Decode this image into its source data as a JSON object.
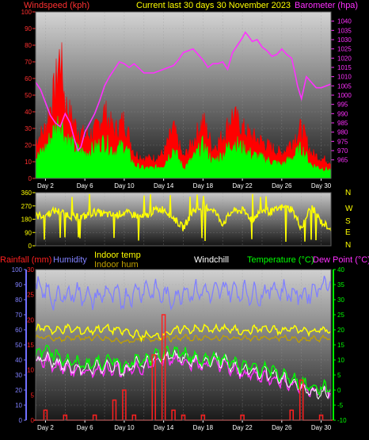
{
  "header": {
    "left": "Windspeed (kph)",
    "center": "Current last 30 days 30 November 2023",
    "right": "Barometer (hpa)"
  },
  "colors": {
    "wind_title": "#ff3030",
    "center_title": "#ffff00",
    "baro": "#ff30ff",
    "gust": "#ff0000",
    "avg_wind": "#00ff00",
    "wind_dir": "#ffff00",
    "rain": "#ff2020",
    "humidity": "#8080ff",
    "indoor_temp": "#ffff00",
    "indoor_hum": "#c0a000",
    "windchill": "#ffffff",
    "temperature": "#00ff00",
    "dew": "#ff30ff",
    "frame": "#7070ff"
  },
  "x_ticks": [
    "Day 2",
    "Day 6",
    "Day 10",
    "Day 14",
    "Day 18",
    "Day 22",
    "Day 26",
    "Day 30"
  ],
  "legend": {
    "rainfall": "Rainfall (mm)",
    "humidity": "Humidity",
    "indoor_temp": "Indoor temp",
    "indoor_hum": "Indoor hum",
    "windchill": "Windchill",
    "temperature": "Temperature (°C)",
    "dew_point": "Dew Point (°C)"
  },
  "chart_data": [
    {
      "type": "line",
      "panel": "wind-barometer",
      "x_unit": "day",
      "xlim": [
        1,
        31
      ],
      "left_axis": {
        "label": "Windspeed (kph)",
        "ylim": [
          0,
          100
        ],
        "ticks": [
          "0",
          "10",
          "20",
          "30",
          "40",
          "50",
          "60",
          "70",
          "80",
          "90",
          "100"
        ]
      },
      "right_axis": {
        "label": "Barometer (hpa)",
        "ylim": [
          955,
          1045
        ],
        "ticks": [
          "965",
          "970",
          "975",
          "980",
          "985",
          "990",
          "995",
          "1000",
          "1005",
          "1010",
          "1015",
          "1020",
          "1025",
          "1030",
          "1035",
          "1040"
        ]
      },
      "series": [
        {
          "name": "Barometer (hpa)",
          "axis": "right",
          "x": [
            1,
            1.5,
            2,
            2.5,
            3,
            3.5,
            4,
            4.5,
            5,
            5.3,
            5.6,
            6,
            6.5,
            7,
            7.5,
            8,
            8.5,
            9,
            9.5,
            10,
            10.5,
            11,
            12,
            13,
            14,
            15,
            15.5,
            16,
            16.5,
            17,
            17.5,
            18,
            18.5,
            19,
            19.5,
            20,
            20.5,
            21,
            21.5,
            22,
            22.3,
            22.6,
            23,
            23.5,
            24,
            24.5,
            25,
            25.5,
            26,
            26.5,
            27,
            27.3,
            27.6,
            28,
            28.5,
            29,
            29.5,
            30,
            30.5,
            31
          ],
          "y": [
            1007,
            1003,
            996,
            989,
            985,
            983,
            990,
            985,
            975,
            970,
            972,
            980,
            985,
            990,
            997,
            1005,
            1010,
            1014,
            1018,
            1017,
            1015,
            1017,
            1012,
            1012,
            1014,
            1016,
            1019,
            1023,
            1024,
            1025,
            1022,
            1019,
            1015,
            1017,
            1017,
            1018,
            1014,
            1023,
            1027,
            1031,
            1034,
            1032,
            1029,
            1030,
            1026,
            1024,
            1021,
            1022,
            1025,
            1022,
            1020,
            1013,
            1005,
            998,
            1010,
            1007,
            1004,
            1004,
            1005,
            1006
          ]
        },
        {
          "name": "Gust",
          "axis": "left",
          "x": [
            1,
            2,
            3,
            3.5,
            4,
            5,
            6,
            7,
            8,
            9,
            10,
            11,
            12,
            13,
            14,
            15,
            16,
            17,
            18,
            19,
            20,
            21,
            22,
            23,
            24,
            25,
            26,
            27,
            28,
            29,
            30,
            31
          ],
          "y": [
            22,
            30,
            55,
            75,
            45,
            32,
            25,
            28,
            40,
            28,
            35,
            15,
            12,
            12,
            15,
            30,
            12,
            22,
            35,
            18,
            25,
            38,
            30,
            25,
            22,
            18,
            15,
            22,
            30,
            15,
            12,
            10
          ]
        },
        {
          "name": "Average wind",
          "axis": "left",
          "x": [
            1,
            2,
            3,
            3.5,
            4,
            5,
            6,
            7,
            8,
            9,
            10,
            11,
            12,
            13,
            14,
            15,
            16,
            17,
            18,
            19,
            20,
            21,
            22,
            23,
            24,
            25,
            26,
            27,
            28,
            29,
            30,
            31
          ],
          "y": [
            12,
            18,
            30,
            35,
            25,
            18,
            15,
            18,
            22,
            16,
            20,
            8,
            6,
            6,
            8,
            18,
            6,
            12,
            20,
            10,
            14,
            22,
            18,
            14,
            12,
            10,
            8,
            12,
            18,
            8,
            6,
            5
          ]
        }
      ]
    },
    {
      "type": "line",
      "panel": "wind-direction",
      "x_unit": "day",
      "xlim": [
        1,
        31
      ],
      "ylim": [
        0,
        360
      ],
      "left_ticks": [
        "0",
        "90",
        "180",
        "270",
        "360"
      ],
      "right_labels": [
        "N",
        "W",
        "S",
        "E",
        "N"
      ],
      "series": [
        {
          "name": "Wind direction",
          "axis": "left",
          "x": [
            1,
            2,
            3,
            4,
            5,
            6,
            7,
            8,
            9,
            10,
            11,
            12,
            13,
            14,
            15,
            16,
            17,
            18,
            19,
            20,
            21,
            22,
            23,
            24,
            25,
            26,
            27,
            28,
            29,
            30,
            31
          ],
          "y": [
            200,
            210,
            240,
            220,
            190,
            200,
            230,
            215,
            205,
            225,
            210,
            190,
            240,
            250,
            190,
            120,
            240,
            260,
            250,
            150,
            235,
            240,
            180,
            240,
            230,
            260,
            250,
            120,
            270,
            160,
            120
          ]
        }
      ]
    },
    {
      "type": "line",
      "panel": "temperature-rain-humidity",
      "x_unit": "day",
      "xlim": [
        1,
        31
      ],
      "axes": {
        "humidity": {
          "ylim": [
            0,
            100
          ],
          "ticks": [
            "0",
            "10",
            "20",
            "30",
            "40",
            "50",
            "60",
            "70",
            "80",
            "90",
            "100"
          ]
        },
        "rainfall": {
          "ylim": [
            0,
            30
          ],
          "ticks": [
            "0",
            "5",
            "10",
            "15",
            "20",
            "25",
            "30"
          ]
        },
        "temperature": {
          "ylim": [
            -10,
            40
          ],
          "ticks": [
            "-10",
            "-5",
            "0",
            "5",
            "10",
            "15",
            "20",
            "25",
            "30",
            "35",
            "40"
          ]
        }
      },
      "series": [
        {
          "name": "Humidity",
          "axis": "humidity",
          "x": [
            1,
            2,
            3,
            4,
            5,
            6,
            7,
            8,
            9,
            10,
            11,
            12,
            13,
            14,
            15,
            16,
            17,
            18,
            19,
            20,
            21,
            22,
            23,
            24,
            25,
            26,
            27,
            28,
            29,
            30,
            31
          ],
          "y": [
            88,
            85,
            80,
            83,
            85,
            83,
            80,
            85,
            83,
            80,
            85,
            87,
            86,
            83,
            80,
            86,
            85,
            86,
            83,
            88,
            86,
            85,
            84,
            83,
            88,
            86,
            84,
            83,
            85,
            90,
            92
          ]
        },
        {
          "name": "Rainfall (mm)",
          "axis": "rainfall",
          "x": [
            1,
            2,
            3,
            4,
            5,
            6,
            7,
            8,
            9,
            10,
            11,
            12,
            13,
            14,
            15,
            16,
            17,
            18,
            19,
            20,
            21,
            22,
            23,
            24,
            25,
            26,
            27,
            28,
            29,
            30,
            31
          ],
          "y": [
            0,
            2,
            0,
            1,
            0,
            0,
            1,
            0,
            4,
            6,
            1,
            0,
            13,
            21,
            2,
            1,
            0,
            1,
            0,
            0,
            0,
            1,
            0,
            0,
            0,
            0,
            2,
            8,
            0,
            1,
            0
          ]
        },
        {
          "name": "Indoor temp",
          "axis": "temperature",
          "x": [
            1,
            2,
            3,
            4,
            5,
            6,
            7,
            8,
            9,
            10,
            11,
            12,
            13,
            14,
            15,
            16,
            17,
            18,
            19,
            20,
            21,
            22,
            23,
            24,
            25,
            26,
            27,
            28,
            29,
            30,
            31
          ],
          "y": [
            20,
            21,
            19.5,
            20.5,
            20,
            19.5,
            20,
            20.5,
            20,
            19.5,
            18.5,
            18,
            18,
            18.5,
            19.5,
            20.5,
            20,
            20.5,
            20,
            20.5,
            20,
            19.5,
            20,
            20.5,
            20,
            19.5,
            20.5,
            20,
            19.5,
            20,
            19.5
          ]
        },
        {
          "name": "Indoor hum",
          "axis": "humidity",
          "x": [
            1,
            2,
            3,
            4,
            5,
            6,
            7,
            8,
            9,
            10,
            11,
            12,
            13,
            14,
            15,
            16,
            17,
            18,
            19,
            20,
            21,
            22,
            23,
            24,
            25,
            26,
            27,
            28,
            29,
            30,
            31
          ],
          "y": [
            55,
            55,
            54,
            54,
            55,
            54,
            55,
            54,
            53,
            52,
            53,
            54,
            53,
            55,
            54,
            55,
            54,
            55,
            54,
            55,
            54,
            55,
            54,
            55,
            54,
            55,
            54,
            53,
            54,
            54,
            55
          ]
        },
        {
          "name": "Temperature (°C)",
          "axis": "temperature",
          "x": [
            1,
            2,
            3,
            4,
            5,
            6,
            7,
            8,
            9,
            10,
            11,
            12,
            13,
            14,
            15,
            16,
            17,
            18,
            19,
            20,
            21,
            22,
            23,
            24,
            25,
            26,
            27,
            28,
            29,
            30,
            31
          ],
          "y": [
            11,
            14,
            12,
            10,
            9,
            8.5,
            9,
            9.5,
            10,
            8,
            10,
            9.5,
            11,
            12,
            13,
            12,
            11,
            10,
            11,
            10.5,
            9,
            8,
            7.5,
            7,
            6.5,
            5,
            4,
            2.5,
            1,
            0.5,
            1.5
          ]
        },
        {
          "name": "Windchill",
          "axis": "temperature",
          "x": [
            1,
            2,
            3,
            4,
            5,
            6,
            7,
            8,
            9,
            10,
            11,
            12,
            13,
            14,
            15,
            16,
            17,
            18,
            19,
            20,
            21,
            22,
            23,
            24,
            25,
            26,
            27,
            28,
            29,
            30,
            31
          ],
          "y": [
            9,
            11,
            9,
            8,
            7,
            7,
            7.5,
            8,
            8,
            6,
            8.5,
            8.5,
            10,
            11,
            11.5,
            11,
            10,
            9,
            10,
            9.5,
            8,
            7,
            6.5,
            6,
            5.5,
            3.5,
            2.5,
            1,
            -0.5,
            -1,
            0
          ]
        },
        {
          "name": "Dew Point (°C)",
          "axis": "temperature",
          "x": [
            1,
            2,
            3,
            4,
            5,
            6,
            7,
            8,
            9,
            10,
            11,
            12,
            13,
            14,
            15,
            16,
            17,
            18,
            19,
            20,
            21,
            22,
            23,
            24,
            25,
            26,
            27,
            28,
            29,
            30,
            31
          ],
          "y": [
            9,
            10,
            8,
            7.5,
            6.5,
            6,
            6.5,
            7,
            7.5,
            5.5,
            7.5,
            7.5,
            9,
            10,
            10.5,
            10,
            9,
            8,
            9,
            8.5,
            6.5,
            5.5,
            5,
            4.5,
            4,
            3,
            2,
            1,
            0,
            -0.5,
            0
          ]
        }
      ]
    }
  ]
}
